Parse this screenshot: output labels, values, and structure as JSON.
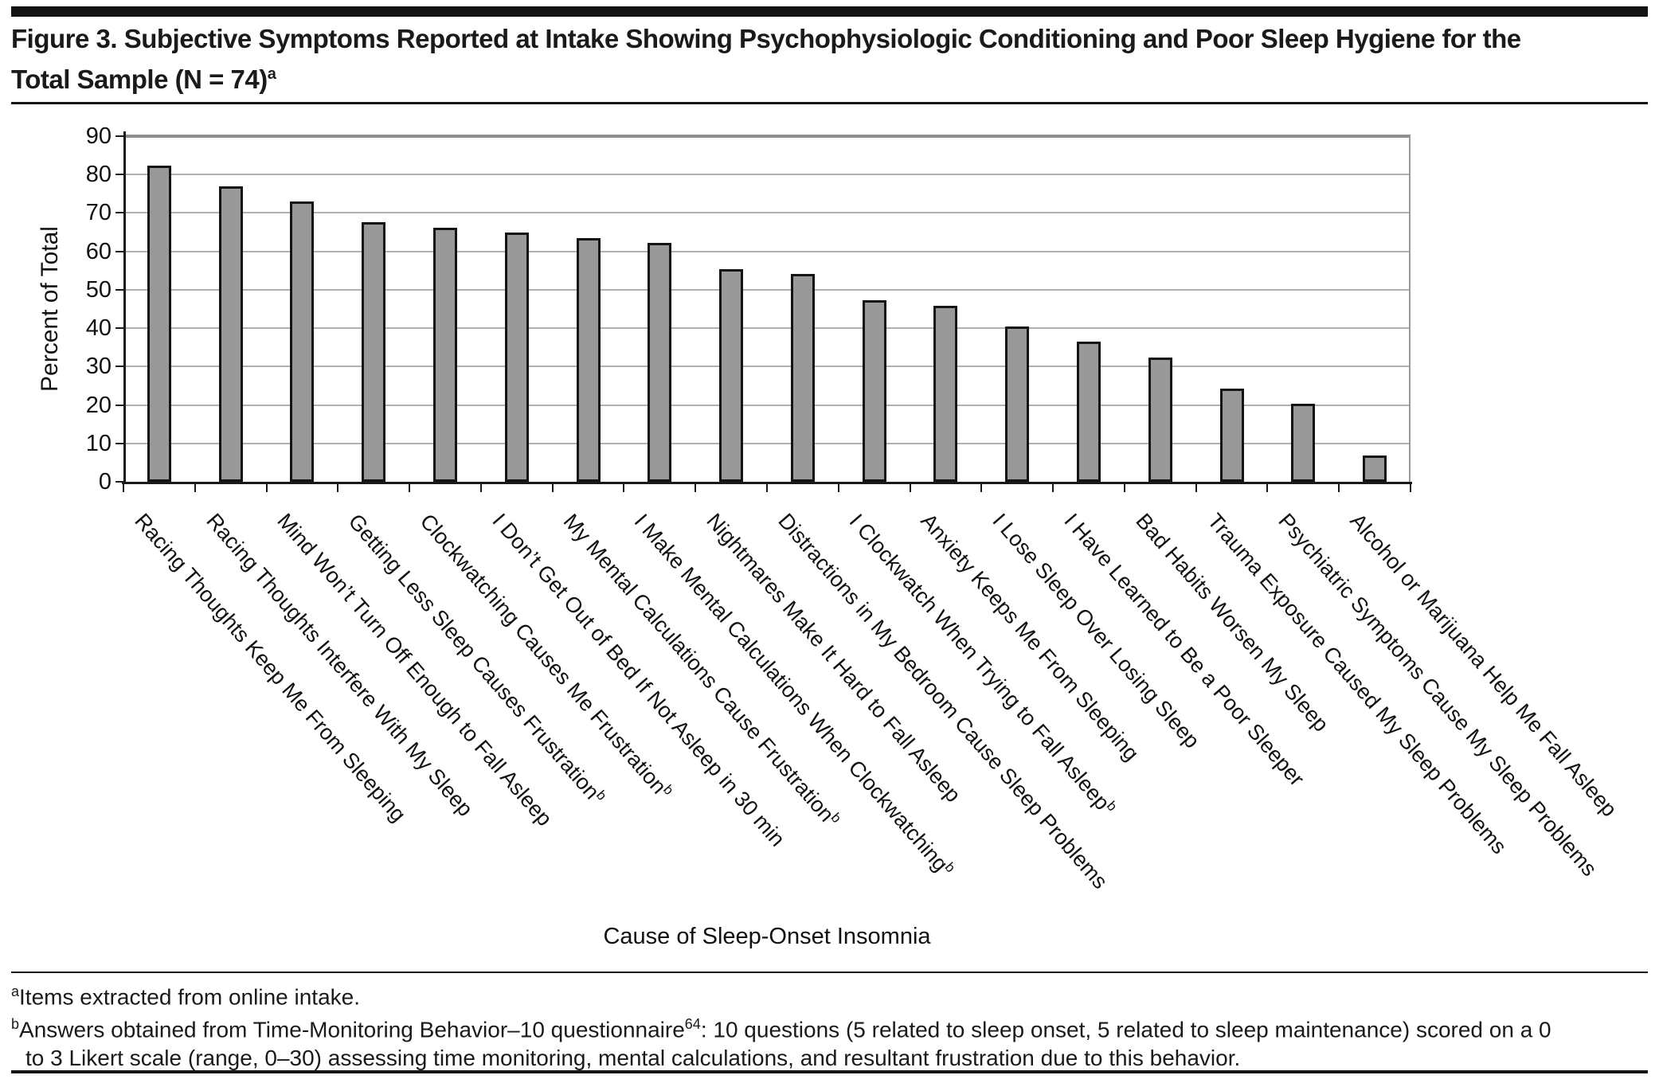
{
  "chart_data": {
    "type": "bar",
    "title_line1": "Figure 3. Subjective Symptoms Reported at Intake Showing Psychophysiologic Conditioning and Poor Sleep Hygiene for the",
    "title_line2": "Total Sample (N = 74)",
    "title_sup": "a",
    "xlabel": "Cause of Sleep-Onset Insomnia",
    "ylabel": "Percent of Total",
    "ylim": [
      0,
      90
    ],
    "ytick_step": 10,
    "grid": true,
    "legend": "none",
    "bar_color": "#999999",
    "bar_border_color": "#141414",
    "categories": [
      {
        "label": "Racing Thoughts Keep Me From Sleeping",
        "sup": ""
      },
      {
        "label": "Racing Thoughts Interfere With My Sleep",
        "sup": ""
      },
      {
        "label": "Mind Won’t Turn Off Enough to Fall Asleep",
        "sup": ""
      },
      {
        "label": "Getting Less Sleep Causes Frustration",
        "sup": "b"
      },
      {
        "label": "Clockwatching Causes Me Frustration",
        "sup": "b"
      },
      {
        "label": "I Don’t Get Out of Bed If Not Asleep in 30 min",
        "sup": ""
      },
      {
        "label": "My Mental Calculations Cause Frustration",
        "sup": "b"
      },
      {
        "label": "I Make Mental Calculations When Clockwatching",
        "sup": "b"
      },
      {
        "label": "Nightmares Make It Hard to Fall Asleep",
        "sup": ""
      },
      {
        "label": "Distractions in My Bedroom Cause Sleep Problems",
        "sup": ""
      },
      {
        "label": "I Clockwatch When Trying to Fall Asleep",
        "sup": "b"
      },
      {
        "label": "Anxiety Keeps Me From Sleeping",
        "sup": ""
      },
      {
        "label": "I Lose Sleep Over Losing Sleep",
        "sup": ""
      },
      {
        "label": "I Have Learned to Be a Poor Sleeper",
        "sup": ""
      },
      {
        "label": "Bad Habits Worsen My Sleep",
        "sup": ""
      },
      {
        "label": "Trauma Exposure Caused My Sleep Problems",
        "sup": ""
      },
      {
        "label": "Psychiatric Symptoms Cause My Sleep Problems",
        "sup": ""
      },
      {
        "label": "Alcohol or Marijuana Help Me Fall Asleep",
        "sup": ""
      }
    ],
    "values": [
      82.4,
      77.0,
      73.0,
      67.6,
      66.2,
      64.9,
      63.5,
      62.2,
      55.4,
      54.1,
      47.3,
      45.9,
      40.5,
      36.5,
      32.4,
      24.3,
      20.3,
      6.8
    ]
  },
  "footnotes": {
    "a_sup": "a",
    "a_text": "Items extracted from online intake.",
    "b_sup": "b",
    "b_text_1": "Answers obtained from Time-Monitoring Behavior–10 questionnaire",
    "b_ref_sup": "64",
    "b_text_2": ": 10 questions (5 related to sleep onset, 5 related to sleep maintenance) scored on a 0",
    "b_text_3": "to 3 Likert scale (range, 0–30) assessing time monitoring, mental calculations, and resultant frustration due to this behavior."
  }
}
